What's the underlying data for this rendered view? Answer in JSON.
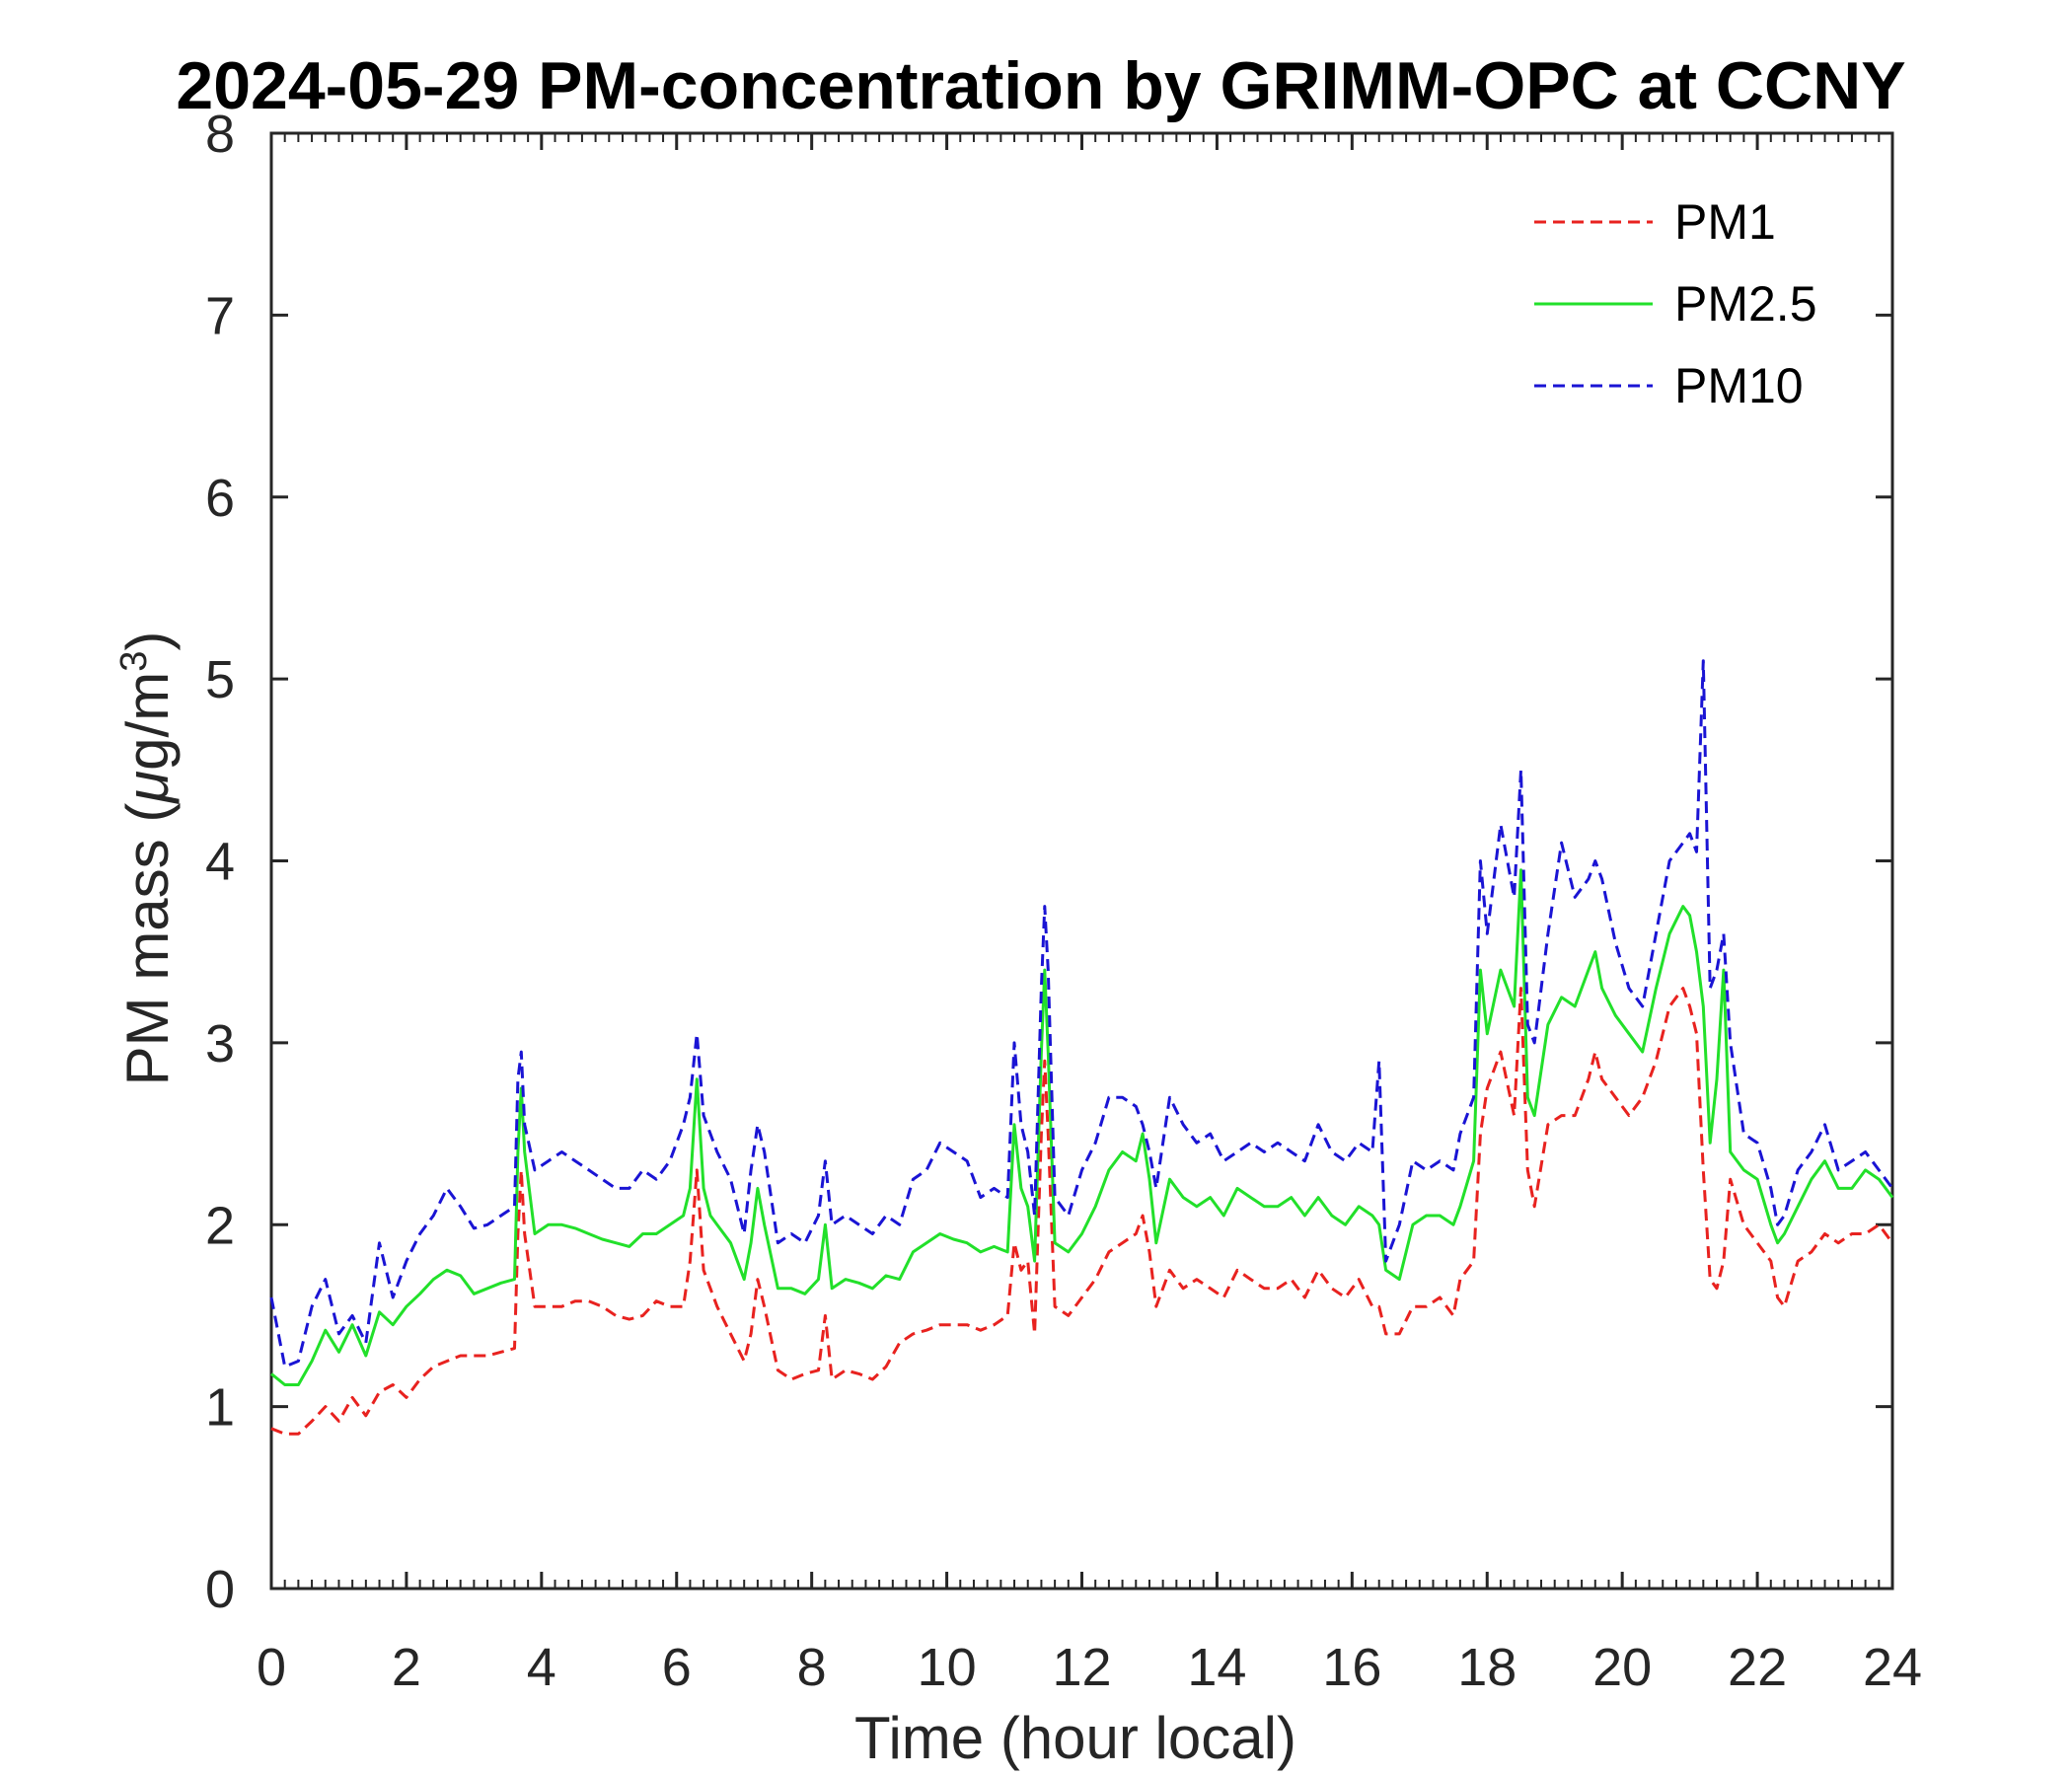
{
  "chart_data": {
    "type": "line",
    "title": "2024-05-29 PM-concentration by GRIMM-OPC at CCNY",
    "xlabel": "Time (hour local)",
    "ylabel_prefix": "PM mass (",
    "ylabel_unit_greek": "μ",
    "ylabel_unit_rest": "g/m",
    "ylabel_superscript": "3",
    "ylabel_suffix": ")",
    "xlim": [
      0,
      24
    ],
    "ylim": [
      0,
      8
    ],
    "xticks": [
      "0",
      "2",
      "4",
      "6",
      "8",
      "10",
      "12",
      "14",
      "16",
      "18",
      "20",
      "22",
      "24"
    ],
    "yticks": [
      "0",
      "1",
      "2",
      "3",
      "4",
      "5",
      "6",
      "7",
      "8"
    ],
    "grid": false,
    "legend_position": "top-right",
    "series": [
      {
        "name": "PM1",
        "color": "#e8221f",
        "dash": "dashed",
        "x": [
          0,
          0.2,
          0.4,
          0.6,
          0.8,
          1.0,
          1.2,
          1.4,
          1.6,
          1.8,
          2.0,
          2.2,
          2.4,
          2.6,
          2.8,
          3.0,
          3.2,
          3.4,
          3.6,
          3.65,
          3.7,
          3.75,
          3.9,
          4.1,
          4.3,
          4.5,
          4.7,
          4.9,
          5.1,
          5.3,
          5.5,
          5.7,
          5.9,
          6.1,
          6.2,
          6.3,
          6.4,
          6.5,
          6.6,
          6.8,
          7.0,
          7.1,
          7.2,
          7.3,
          7.5,
          7.7,
          7.9,
          8.1,
          8.2,
          8.3,
          8.5,
          8.7,
          8.9,
          9.1,
          9.3,
          9.5,
          9.7,
          9.9,
          10.1,
          10.3,
          10.5,
          10.7,
          10.9,
          11.0,
          11.1,
          11.2,
          11.3,
          11.4,
          11.45,
          11.5,
          11.6,
          11.8,
          12.0,
          12.2,
          12.4,
          12.6,
          12.8,
          12.9,
          13.0,
          13.1,
          13.3,
          13.5,
          13.7,
          13.9,
          14.1,
          14.3,
          14.5,
          14.7,
          14.9,
          15.1,
          15.3,
          15.5,
          15.7,
          15.9,
          16.1,
          16.3,
          16.4,
          16.5,
          16.7,
          16.9,
          17.1,
          17.3,
          17.5,
          17.6,
          17.8,
          17.9,
          18.0,
          18.2,
          18.4,
          18.5,
          18.6,
          18.7,
          18.9,
          19.1,
          19.3,
          19.5,
          19.6,
          19.7,
          19.9,
          20.1,
          20.3,
          20.5,
          20.7,
          20.9,
          21.0,
          21.1,
          21.2,
          21.3,
          21.4,
          21.5,
          21.6,
          21.8,
          22.0,
          22.2,
          22.3,
          22.4,
          22.6,
          22.8,
          23.0,
          23.2,
          23.4,
          23.6,
          23.8,
          24.0
        ],
        "y": [
          0.88,
          0.85,
          0.85,
          0.92,
          1.0,
          0.92,
          1.05,
          0.95,
          1.08,
          1.12,
          1.05,
          1.15,
          1.22,
          1.25,
          1.28,
          1.28,
          1.28,
          1.3,
          1.32,
          1.95,
          2.3,
          1.95,
          1.55,
          1.55,
          1.55,
          1.58,
          1.58,
          1.55,
          1.5,
          1.48,
          1.5,
          1.58,
          1.55,
          1.55,
          1.8,
          2.3,
          1.75,
          1.65,
          1.55,
          1.4,
          1.25,
          1.4,
          1.7,
          1.55,
          1.2,
          1.15,
          1.18,
          1.2,
          1.5,
          1.15,
          1.2,
          1.18,
          1.15,
          1.22,
          1.35,
          1.4,
          1.42,
          1.45,
          1.45,
          1.45,
          1.42,
          1.45,
          1.5,
          1.9,
          1.75,
          1.8,
          1.4,
          2.5,
          2.9,
          2.5,
          1.55,
          1.5,
          1.6,
          1.7,
          1.85,
          1.9,
          1.95,
          2.05,
          1.85,
          1.55,
          1.75,
          1.65,
          1.7,
          1.65,
          1.6,
          1.75,
          1.7,
          1.65,
          1.65,
          1.7,
          1.6,
          1.75,
          1.65,
          1.6,
          1.7,
          1.55,
          1.55,
          1.4,
          1.4,
          1.55,
          1.55,
          1.6,
          1.5,
          1.7,
          1.8,
          2.5,
          2.75,
          2.95,
          2.6,
          3.3,
          2.3,
          2.1,
          2.55,
          2.6,
          2.6,
          2.8,
          2.95,
          2.8,
          2.7,
          2.6,
          2.7,
          2.9,
          3.2,
          3.3,
          3.2,
          3.05,
          2.3,
          1.7,
          1.65,
          1.8,
          2.25,
          2.0,
          1.9,
          1.8,
          1.6,
          1.55,
          1.8,
          1.85,
          1.95,
          1.9,
          1.95,
          1.95,
          2.0,
          1.9
        ]
      },
      {
        "name": "PM2.5",
        "color": "#22e02a",
        "dash": "solid",
        "x": [
          0,
          0.2,
          0.4,
          0.6,
          0.8,
          1.0,
          1.2,
          1.4,
          1.6,
          1.8,
          2.0,
          2.2,
          2.4,
          2.6,
          2.8,
          3.0,
          3.2,
          3.4,
          3.6,
          3.65,
          3.7,
          3.75,
          3.9,
          4.1,
          4.3,
          4.5,
          4.7,
          4.9,
          5.1,
          5.3,
          5.5,
          5.7,
          5.9,
          6.1,
          6.2,
          6.3,
          6.4,
          6.5,
          6.6,
          6.8,
          7.0,
          7.1,
          7.2,
          7.3,
          7.5,
          7.7,
          7.9,
          8.1,
          8.2,
          8.3,
          8.5,
          8.7,
          8.9,
          9.1,
          9.3,
          9.5,
          9.7,
          9.9,
          10.1,
          10.3,
          10.5,
          10.7,
          10.9,
          11.0,
          11.1,
          11.2,
          11.3,
          11.4,
          11.45,
          11.5,
          11.6,
          11.8,
          12.0,
          12.2,
          12.4,
          12.6,
          12.8,
          12.9,
          13.0,
          13.1,
          13.3,
          13.5,
          13.7,
          13.9,
          14.1,
          14.3,
          14.5,
          14.7,
          14.9,
          15.1,
          15.3,
          15.5,
          15.7,
          15.9,
          16.1,
          16.3,
          16.4,
          16.5,
          16.7,
          16.9,
          17.1,
          17.3,
          17.5,
          17.6,
          17.8,
          17.9,
          18.0,
          18.2,
          18.4,
          18.5,
          18.6,
          18.7,
          18.9,
          19.1,
          19.3,
          19.5,
          19.6,
          19.7,
          19.9,
          20.1,
          20.3,
          20.5,
          20.7,
          20.9,
          21.0,
          21.1,
          21.2,
          21.3,
          21.4,
          21.5,
          21.6,
          21.8,
          22.0,
          22.2,
          22.3,
          22.4,
          22.6,
          22.8,
          23.0,
          23.2,
          23.4,
          23.6,
          23.8,
          24.0
        ],
        "y": [
          1.18,
          1.12,
          1.12,
          1.25,
          1.42,
          1.3,
          1.45,
          1.28,
          1.52,
          1.45,
          1.55,
          1.62,
          1.7,
          1.75,
          1.72,
          1.62,
          1.65,
          1.68,
          1.7,
          2.4,
          2.75,
          2.4,
          1.95,
          2.0,
          2.0,
          1.98,
          1.95,
          1.92,
          1.9,
          1.88,
          1.95,
          1.95,
          2.0,
          2.05,
          2.2,
          2.8,
          2.2,
          2.05,
          2.0,
          1.9,
          1.7,
          1.9,
          2.2,
          2.0,
          1.65,
          1.65,
          1.62,
          1.7,
          2.0,
          1.65,
          1.7,
          1.68,
          1.65,
          1.72,
          1.7,
          1.85,
          1.9,
          1.95,
          1.92,
          1.9,
          1.85,
          1.88,
          1.85,
          2.55,
          2.2,
          2.1,
          1.8,
          2.95,
          3.4,
          2.95,
          1.9,
          1.85,
          1.95,
          2.1,
          2.3,
          2.4,
          2.35,
          2.5,
          2.25,
          1.9,
          2.25,
          2.15,
          2.1,
          2.15,
          2.05,
          2.2,
          2.15,
          2.1,
          2.1,
          2.15,
          2.05,
          2.15,
          2.05,
          2.0,
          2.1,
          2.05,
          2.0,
          1.75,
          1.7,
          2.0,
          2.05,
          2.05,
          2.0,
          2.1,
          2.35,
          3.4,
          3.05,
          3.4,
          3.2,
          3.95,
          2.7,
          2.6,
          3.1,
          3.25,
          3.2,
          3.4,
          3.5,
          3.3,
          3.15,
          3.05,
          2.95,
          3.3,
          3.6,
          3.75,
          3.7,
          3.5,
          3.2,
          2.45,
          2.8,
          3.4,
          2.4,
          2.3,
          2.25,
          2.0,
          1.9,
          1.95,
          2.1,
          2.25,
          2.35,
          2.2,
          2.2,
          2.3,
          2.25,
          2.15
        ]
      },
      {
        "name": "PM10",
        "color": "#1a14d4",
        "dash": "dashed",
        "x": [
          0,
          0.2,
          0.4,
          0.6,
          0.8,
          1.0,
          1.2,
          1.4,
          1.6,
          1.8,
          2.0,
          2.2,
          2.4,
          2.6,
          2.8,
          3.0,
          3.2,
          3.4,
          3.6,
          3.65,
          3.7,
          3.75,
          3.9,
          4.1,
          4.3,
          4.5,
          4.7,
          4.9,
          5.1,
          5.3,
          5.5,
          5.7,
          5.9,
          6.1,
          6.2,
          6.3,
          6.4,
          6.5,
          6.6,
          6.8,
          7.0,
          7.1,
          7.2,
          7.3,
          7.5,
          7.7,
          7.9,
          8.1,
          8.2,
          8.3,
          8.5,
          8.7,
          8.9,
          9.1,
          9.3,
          9.5,
          9.7,
          9.9,
          10.1,
          10.3,
          10.5,
          10.7,
          10.9,
          11.0,
          11.1,
          11.2,
          11.3,
          11.4,
          11.45,
          11.5,
          11.6,
          11.8,
          12.0,
          12.2,
          12.4,
          12.6,
          12.8,
          12.9,
          13.0,
          13.1,
          13.3,
          13.5,
          13.7,
          13.9,
          14.1,
          14.3,
          14.5,
          14.7,
          14.9,
          15.1,
          15.3,
          15.5,
          15.7,
          15.9,
          16.1,
          16.3,
          16.4,
          16.5,
          16.7,
          16.9,
          17.1,
          17.3,
          17.5,
          17.6,
          17.8,
          17.9,
          18.0,
          18.2,
          18.4,
          18.5,
          18.6,
          18.7,
          18.9,
          19.1,
          19.3,
          19.5,
          19.6,
          19.7,
          19.9,
          20.1,
          20.3,
          20.5,
          20.7,
          20.9,
          21.0,
          21.1,
          21.2,
          21.3,
          21.4,
          21.5,
          21.6,
          21.8,
          22.0,
          22.2,
          22.3,
          22.4,
          22.6,
          22.8,
          23.0,
          23.2,
          23.4,
          23.6,
          23.8,
          24.0
        ],
        "y": [
          1.6,
          1.22,
          1.25,
          1.55,
          1.7,
          1.4,
          1.5,
          1.35,
          1.9,
          1.6,
          1.8,
          1.95,
          2.05,
          2.2,
          2.1,
          1.98,
          2.0,
          2.05,
          2.1,
          2.8,
          2.95,
          2.55,
          2.3,
          2.35,
          2.4,
          2.35,
          2.3,
          2.25,
          2.2,
          2.2,
          2.3,
          2.25,
          2.35,
          2.55,
          2.7,
          3.05,
          2.6,
          2.5,
          2.4,
          2.25,
          1.95,
          2.3,
          2.55,
          2.4,
          1.9,
          1.95,
          1.9,
          2.05,
          2.35,
          2.0,
          2.05,
          2.0,
          1.95,
          2.05,
          2.0,
          2.25,
          2.3,
          2.45,
          2.4,
          2.35,
          2.15,
          2.2,
          2.15,
          3.0,
          2.55,
          2.4,
          2.05,
          3.3,
          3.75,
          3.4,
          2.15,
          2.05,
          2.3,
          2.45,
          2.7,
          2.7,
          2.65,
          2.55,
          2.4,
          2.2,
          2.7,
          2.55,
          2.45,
          2.5,
          2.35,
          2.4,
          2.45,
          2.4,
          2.45,
          2.4,
          2.35,
          2.55,
          2.4,
          2.35,
          2.45,
          2.4,
          2.9,
          1.8,
          2.0,
          2.35,
          2.3,
          2.35,
          2.3,
          2.5,
          2.7,
          4.0,
          3.6,
          4.2,
          3.8,
          4.5,
          3.1,
          3.0,
          3.6,
          4.1,
          3.8,
          3.9,
          4.0,
          3.9,
          3.55,
          3.3,
          3.2,
          3.6,
          4.0,
          4.1,
          4.15,
          4.05,
          5.1,
          3.3,
          3.4,
          3.6,
          3.0,
          2.5,
          2.45,
          2.2,
          2.0,
          2.05,
          2.3,
          2.4,
          2.55,
          2.3,
          2.35,
          2.4,
          2.3,
          2.2
        ]
      }
    ]
  }
}
